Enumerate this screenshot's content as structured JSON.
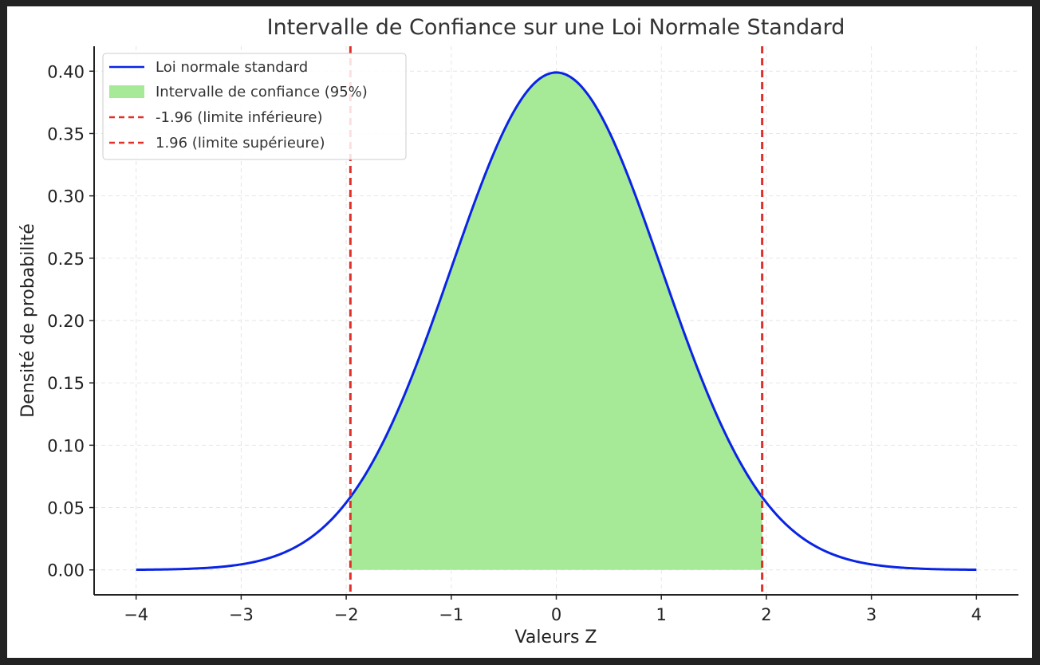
{
  "chart_data": {
    "type": "line",
    "title": "Intervalle de Confiance sur une Loi Normale Standard",
    "xlabel": "Valeurs Z",
    "ylabel": "Densité de probabilité",
    "xlim": [
      -4.4,
      4.4
    ],
    "ylim": [
      -0.02,
      0.42
    ],
    "x_ticks": [
      -4,
      -3,
      -2,
      -1,
      0,
      1,
      2,
      3,
      4
    ],
    "x_tick_labels": [
      "−4",
      "−3",
      "−2",
      "−1",
      "0",
      "1",
      "2",
      "3",
      "4"
    ],
    "y_ticks": [
      0.0,
      0.05,
      0.1,
      0.15,
      0.2,
      0.25,
      0.3,
      0.35,
      0.4
    ],
    "y_tick_labels": [
      "0.00",
      "0.05",
      "0.10",
      "0.15",
      "0.20",
      "0.25",
      "0.30",
      "0.35",
      "0.40"
    ],
    "grid": true,
    "legend_position": "top-left",
    "series": [
      {
        "name": "Loi normale standard",
        "kind": "line",
        "color": "#0a24e6",
        "x": [
          -4.0,
          -3.5,
          -3.0,
          -2.5,
          -2.0,
          -1.96,
          -1.5,
          -1.0,
          -0.5,
          0.0,
          0.5,
          1.0,
          1.5,
          1.96,
          2.0,
          2.5,
          3.0,
          3.5,
          4.0
        ],
        "y": [
          0.0001,
          0.0009,
          0.0044,
          0.0175,
          0.054,
          0.0584,
          0.1295,
          0.242,
          0.3521,
          0.3989,
          0.3521,
          0.242,
          0.1295,
          0.0584,
          0.054,
          0.0175,
          0.0044,
          0.0009,
          0.0001
        ]
      },
      {
        "name": "Intervalle de confiance (95%)",
        "kind": "area",
        "color": "#a6ea98",
        "x_range": [
          -1.96,
          1.96
        ]
      },
      {
        "name": "-1.96 (limite inférieure)",
        "kind": "vline",
        "color": "#e0302a",
        "x": -1.96
      },
      {
        "name": "1.96 (limite supérieure)",
        "kind": "vline",
        "color": "#e0302a",
        "x": 1.96
      }
    ]
  }
}
